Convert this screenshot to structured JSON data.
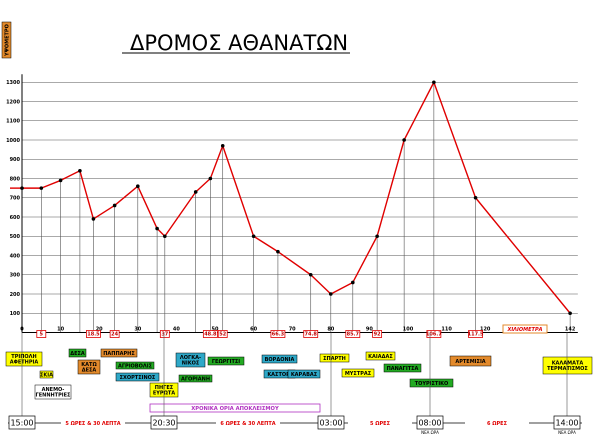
{
  "chart_data": {
    "type": "line",
    "title": "ΔΡΟΜΟΣ ΑΘΑΝΑΤΩΝ",
    "ylabel": "ΥΨΟΜΕΤΡΟ",
    "xlabel": "ΧΙΛΙΟΜΕΤΡΑ",
    "ylim": [
      0,
      1300
    ],
    "xlim": [
      0,
      144
    ],
    "y_ticks": [
      "100",
      "200",
      "300",
      "400",
      "500",
      "600",
      "700",
      "800",
      "900",
      "1000",
      "1100",
      "1200",
      "1300"
    ],
    "x_ticks": [
      "0",
      "10",
      "20",
      "30",
      "40",
      "50",
      "60",
      "70",
      "80",
      "90",
      "100",
      "110",
      "120",
      "130",
      "142"
    ],
    "grid": true,
    "series": [
      {
        "color": "#e00000",
        "x": [
          0,
          5,
          10,
          15,
          18.5,
          24,
          30,
          35,
          37,
          45,
          48.8,
          52,
          60,
          66.3,
          74.8,
          80,
          85.7,
          92,
          99,
          106.7,
          117.5,
          142
        ],
        "y": [
          750,
          750,
          790,
          840,
          590,
          660,
          760,
          540,
          500,
          730,
          800,
          970,
          500,
          420,
          300,
          200,
          260,
          500,
          1000,
          1300,
          700,
          100
        ]
      }
    ],
    "km_markers": [
      "5",
      "18.5",
      "24",
      "37",
      "48.8",
      "52",
      "66.3",
      "74.8",
      "85.7",
      "92",
      "106.7",
      "117.5"
    ],
    "places": [
      {
        "lines": [
          "ΤΡΙΠΟΛΗ",
          "ΑΦΕΤΗΡΙΑ"
        ],
        "color": "#ffff00"
      },
      {
        "lines": [
          "ΣΚΙΑ"
        ],
        "color": "#ffff00"
      },
      {
        "lines": [
          "ΑΝΕΜΟ-",
          "ΓΕΝΝΗΤΡΙΕΣ"
        ],
        "color": "#ffffff"
      },
      {
        "lines": [
          "ΔΕΣΑ"
        ],
        "color": "#22aa22"
      },
      {
        "lines": [
          "ΚΑΤΩ",
          "ΔΕΣΑ"
        ],
        "color": "#e38a2b"
      },
      {
        "lines": [
          "ΠΑΠΠΑΡΗΣ"
        ],
        "color": "#e38a2b"
      },
      {
        "lines": [
          "ΑΓΡΙΟΒΟΛΙΣ"
        ],
        "color": "#22aa22"
      },
      {
        "lines": [
          "ΣΧΟΡΤΣΙΝΟΣ"
        ],
        "color": "#2ea8c8"
      },
      {
        "lines": [
          "ΠΗΓΕΣ",
          "ΕΥΡΩΤΑ"
        ],
        "color": "#ffff00"
      },
      {
        "lines": [
          "ΛΟΓΚΑ-",
          "ΝΙΚΟΣ"
        ],
        "color": "#2ea8c8"
      },
      {
        "lines": [
          "ΑΓΟΡΙΑΝΗ"
        ],
        "color": "#22aa22"
      },
      {
        "lines": [
          "ΓΕΩΡΓΙΤΣΙ"
        ],
        "color": "#22aa22"
      },
      {
        "lines": [
          "ΒΟΡΔΟΝΙΑ"
        ],
        "color": "#2ea8c8"
      },
      {
        "lines": [
          "ΚΑΣΤΟΡΙ"
        ],
        "color": "#2ea8c8"
      },
      {
        "lines": [
          "ΚΑΡΑΒΑΣ"
        ],
        "color": "#2ea8c8"
      },
      {
        "lines": [
          "ΣΠΑΡΤΗ"
        ],
        "color": "#ffff00"
      },
      {
        "lines": [
          "ΜΥΣΤΡΑΣ"
        ],
        "color": "#ffff00"
      },
      {
        "lines": [
          "ΚΑΙΑΔΑΣ"
        ],
        "color": "#ffff00"
      },
      {
        "lines": [
          "ΠΑΝΑΓΙΤΣΑ"
        ],
        "color": "#22aa22"
      },
      {
        "lines": [
          "ΤΟΥΡΙΣΤΙΚΟ"
        ],
        "color": "#22aa22"
      },
      {
        "lines": [
          "ΑΡΤΕΜΙΣΙΑ"
        ],
        "color": "#e38a2b"
      },
      {
        "lines": [
          "ΚΑΛΑΜΑΤΑ",
          "ΤΕΡΜΑΤΙΣΜΟΣ"
        ],
        "color": "#ffff00"
      }
    ],
    "cutoff_label": "ΧΡΟΝΙΚΑ ΟΡΙΑ ΑΠΟΚΛΕΙΣΜΟΥ",
    "times": [
      {
        "time": "15:00",
        "sub": ""
      },
      {
        "time": "20:30",
        "sub": ""
      },
      {
        "time": "03:00",
        "sub": ""
      },
      {
        "time": "08:00",
        "sub": "ΝΕΑ ΩΡΑ"
      },
      {
        "time": "14:00",
        "sub": "ΝΕΑ ΩΡΑ"
      }
    ],
    "durations": [
      "5 ΩΡΕΣ & 30 ΛΕΠΤΑ",
      "6 ΩΡΕΣ & 30 ΛΕΠΤΑ",
      "5 ΩΡΕΣ",
      "6 ΩΡΕΣ"
    ]
  }
}
